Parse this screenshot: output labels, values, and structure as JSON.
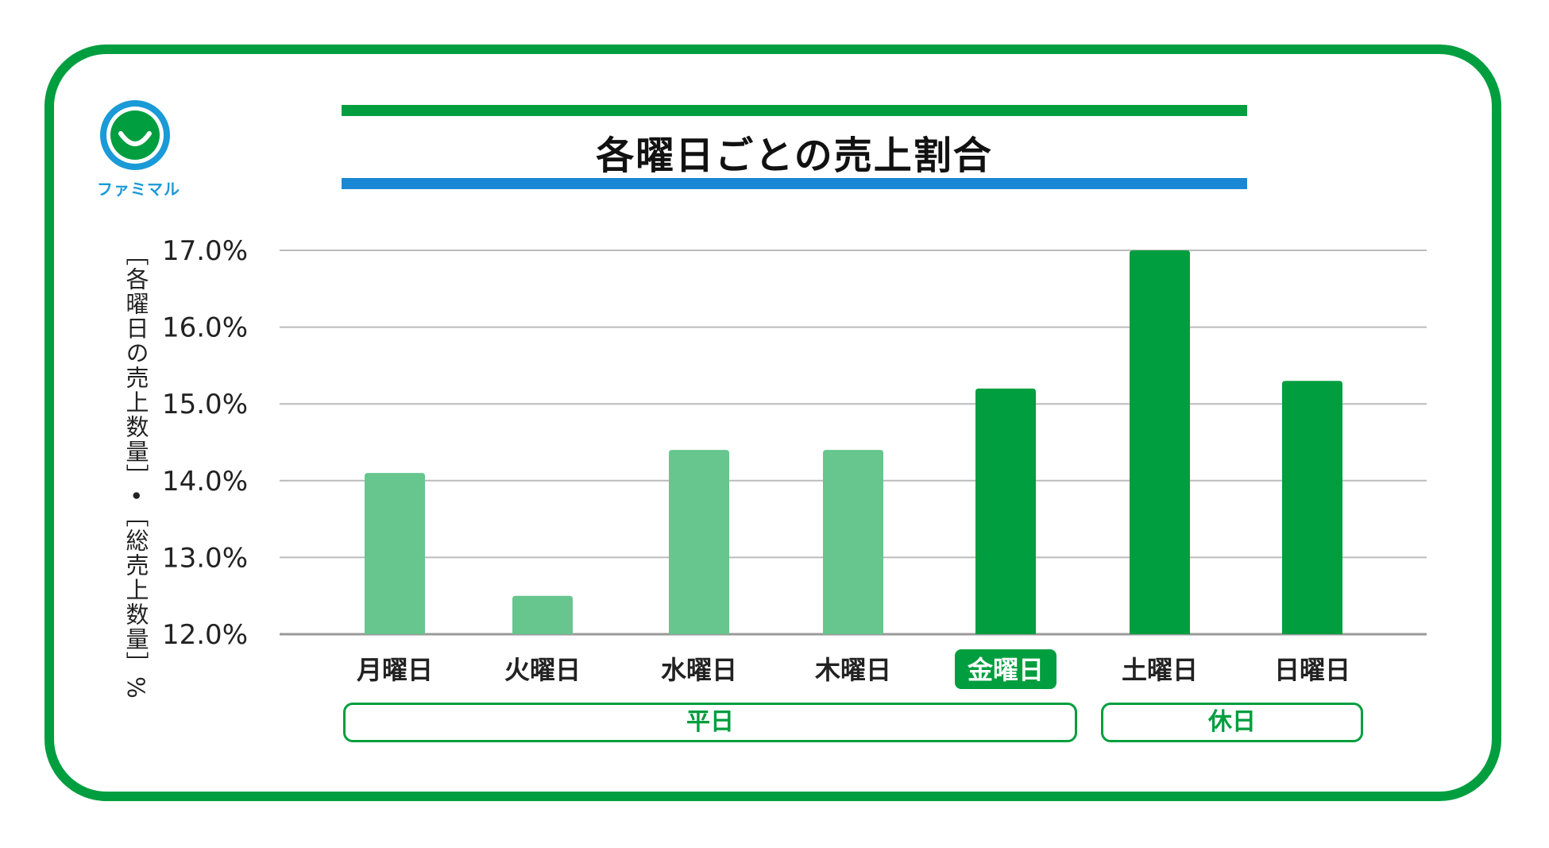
{
  "logo": {
    "text": "ファミマル",
    "icon": "smile-icon",
    "ring_color": "#1a9ad6",
    "fill_color": "#009e3f"
  },
  "title": "各曜日ごとの売上割合",
  "colors": {
    "frame": "#009e3f",
    "title_bar_top": "#009e3f",
    "title_bar_bottom": "#1a87d4",
    "weekday_bar": "#66c68e",
    "weekend_bar": "#009e3f",
    "highlight_label_bg": "#009e3f"
  },
  "chart_data": {
    "type": "bar",
    "title": "各曜日ごとの売上割合",
    "ylabel": "［各曜日の売上数量］•［総売上数量］%",
    "xlabel": "",
    "ylim": [
      12.0,
      17.0
    ],
    "yticks": [
      "12.0%",
      "13.0%",
      "14.0%",
      "15.0%",
      "16.0%",
      "17.0%"
    ],
    "grid": true,
    "categories": [
      "月曜日",
      "火曜日",
      "水曜日",
      "木曜日",
      "金曜日",
      "土曜日",
      "日曜日"
    ],
    "values": [
      14.1,
      12.5,
      14.4,
      14.4,
      15.2,
      17.0,
      15.3
    ],
    "bar_style": [
      "light",
      "light",
      "light",
      "light",
      "dark",
      "dark",
      "dark"
    ],
    "highlighted_category": "金曜日",
    "groups": [
      {
        "label": "平日",
        "categories": [
          "月曜日",
          "火曜日",
          "水曜日",
          "木曜日",
          "金曜日"
        ]
      },
      {
        "label": "休日",
        "categories": [
          "土曜日",
          "日曜日"
        ]
      }
    ]
  }
}
